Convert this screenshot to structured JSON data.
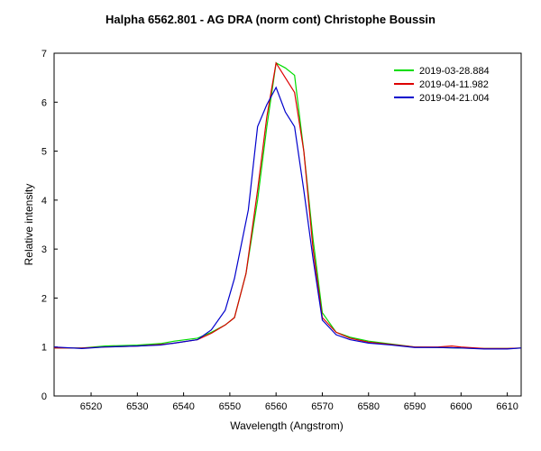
{
  "chart_data": {
    "type": "line",
    "title": "Halpha 6562.801 - AG DRA (norm cont)   Christophe Boussin",
    "xlabel": "Wavelength (Angstrom)",
    "ylabel": "Relative intensity",
    "xlim": [
      6512,
      6613
    ],
    "ylim": [
      0,
      7
    ],
    "xticks": [
      6520,
      6530,
      6540,
      6550,
      6560,
      6570,
      6580,
      6590,
      6600,
      6610
    ],
    "yticks": [
      0,
      1,
      2,
      3,
      4,
      5,
      6,
      7
    ],
    "grid": false,
    "legend_position": "top-right",
    "series": [
      {
        "name": "2019-03-28.884",
        "color": "#00dd00",
        "x": [
          6512,
          6518,
          6523,
          6530,
          6535,
          6538,
          6543,
          6546,
          6549,
          6551,
          6553.5,
          6556,
          6558,
          6560,
          6562,
          6564,
          6566,
          6568,
          6570,
          6573,
          6576,
          6580,
          6585,
          6590,
          6595,
          6600,
          6605,
          6610,
          6613
        ],
        "y": [
          0.98,
          0.98,
          1.02,
          1.04,
          1.07,
          1.12,
          1.18,
          1.3,
          1.45,
          1.6,
          2.5,
          4.0,
          5.5,
          6.8,
          6.7,
          6.55,
          5.0,
          3.2,
          1.7,
          1.3,
          1.2,
          1.12,
          1.06,
          1.0,
          0.99,
          0.98,
          0.97,
          0.97,
          0.98
        ]
      },
      {
        "name": "2019-04-11.982",
        "color": "#dd0000",
        "x": [
          6512,
          6518,
          6523,
          6530,
          6535,
          6538,
          6543,
          6546,
          6549,
          6551,
          6553.5,
          6556,
          6558,
          6560,
          6562,
          6564,
          6566,
          6568,
          6570,
          6573,
          6576,
          6580,
          6585,
          6590,
          6595,
          6598,
          6600,
          6605,
          6610,
          6613
        ],
        "y": [
          0.98,
          0.98,
          1.0,
          1.02,
          1.05,
          1.08,
          1.15,
          1.28,
          1.45,
          1.6,
          2.5,
          4.2,
          5.7,
          6.8,
          6.5,
          6.2,
          5.0,
          3.0,
          1.6,
          1.3,
          1.18,
          1.1,
          1.05,
          1.0,
          1.0,
          1.02,
          1.0,
          0.97,
          0.97,
          0.98
        ]
      },
      {
        "name": "2019-04-21.004",
        "color": "#0000cc",
        "x": [
          6512,
          6518,
          6523,
          6530,
          6535,
          6538,
          6543,
          6546,
          6549,
          6551,
          6554,
          6556,
          6558,
          6560,
          6562,
          6564,
          6566,
          6568,
          6570,
          6573,
          6576,
          6580,
          6585,
          6590,
          6595,
          6600,
          6605,
          6610,
          6613
        ],
        "y": [
          1.0,
          0.97,
          1.0,
          1.02,
          1.04,
          1.08,
          1.15,
          1.35,
          1.75,
          2.4,
          3.8,
          5.5,
          5.95,
          6.3,
          5.8,
          5.5,
          4.2,
          2.8,
          1.55,
          1.25,
          1.15,
          1.08,
          1.04,
          0.99,
          0.99,
          0.98,
          0.96,
          0.96,
          0.98
        ]
      }
    ]
  }
}
